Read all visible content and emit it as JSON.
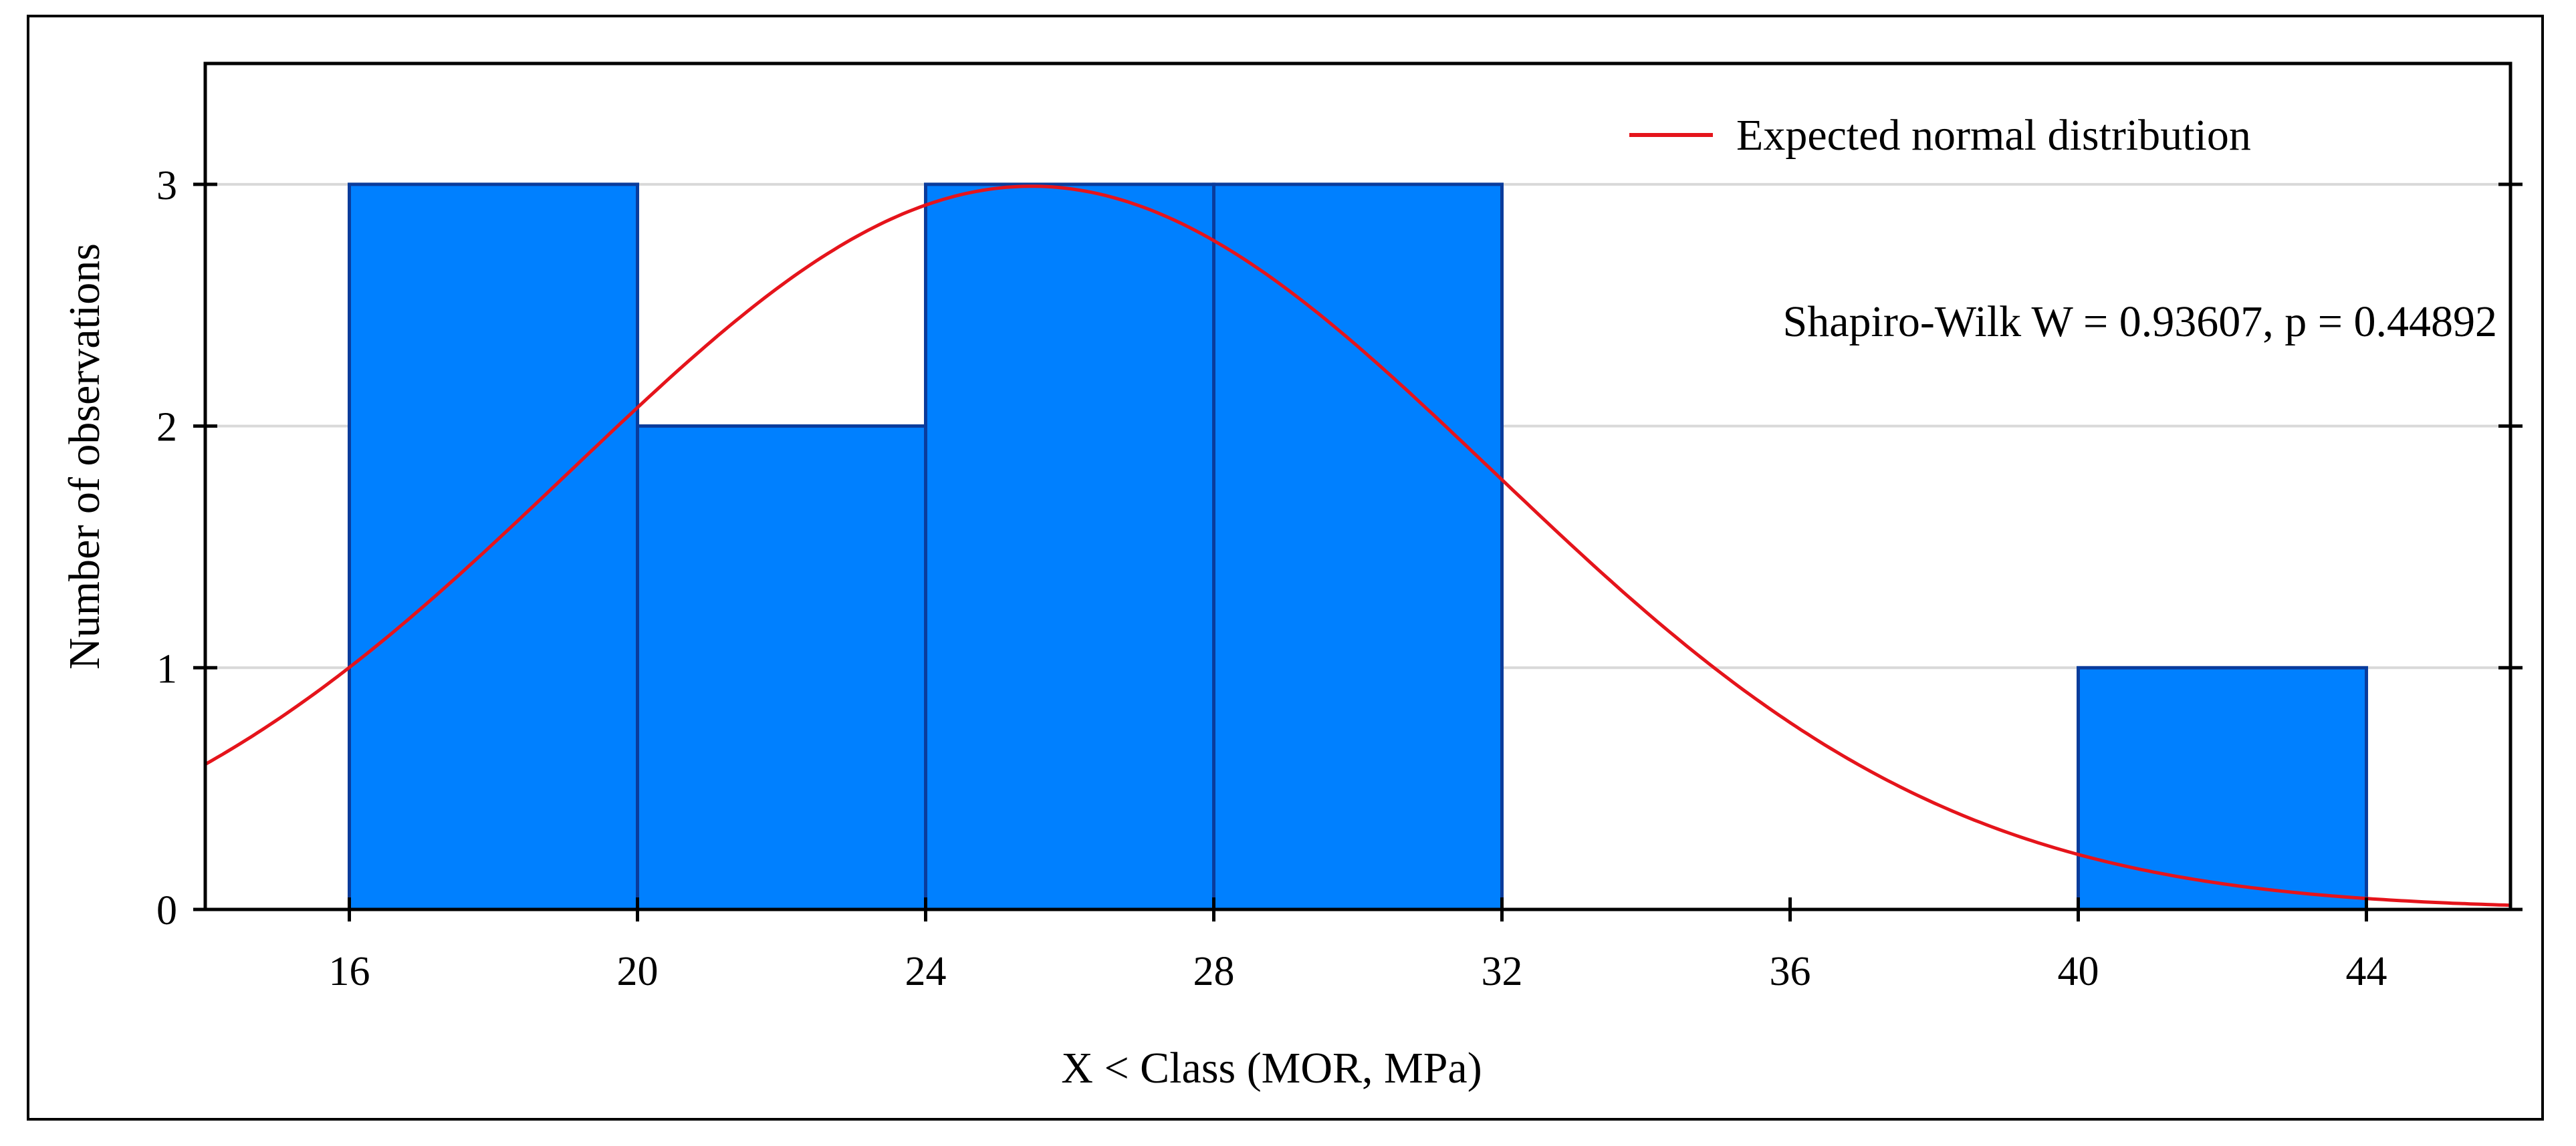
{
  "chart_data": {
    "type": "bar",
    "subtype": "histogram",
    "bins": [
      {
        "from": 16,
        "to": 20,
        "count": 3
      },
      {
        "from": 20,
        "to": 24,
        "count": 2
      },
      {
        "from": 24,
        "to": 28,
        "count": 3
      },
      {
        "from": 28,
        "to": 32,
        "count": 3
      },
      {
        "from": 40,
        "to": 44,
        "count": 1
      }
    ],
    "overlay": {
      "type": "line",
      "name": "Expected normal distribution",
      "mean": 25.47,
      "sd": 6.4,
      "n": 12,
      "bin_width": 4
    },
    "xlabel": "X < Class (MOR, MPa)",
    "ylabel": "Number of observations",
    "xlim": [
      14,
      46
    ],
    "ylim": [
      0,
      3.5
    ],
    "x_ticks": [
      "16",
      "20",
      "24",
      "28",
      "32",
      "36",
      "40",
      "44"
    ],
    "y_ticks": [
      "0",
      "1",
      "2",
      "3"
    ],
    "legend": {
      "label": "Expected normal distribution",
      "position": "top-right"
    },
    "annotation": "Shapiro-Wilk W = 0.93607, p = 0.44892",
    "grid": "horizontal",
    "colors": {
      "bar_fill": "#0080FF",
      "bar_edge": "#0A3C9C",
      "curve": "#E5141B",
      "grid": "#D9D9D9"
    }
  }
}
